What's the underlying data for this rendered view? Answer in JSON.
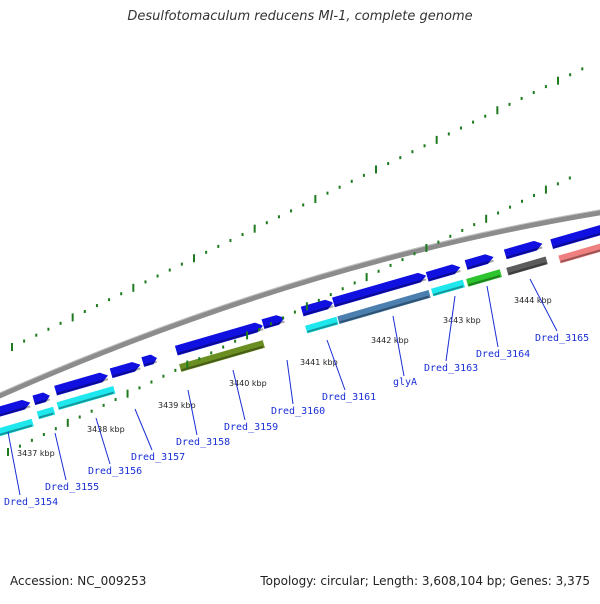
{
  "title": "Desulfotomaculum reducens MI-1, complete genome",
  "footer": {
    "accession": "Accession: NC_009253",
    "summary": "Topology: circular; Length: 3,608,104 bp; Genes: 3,375"
  },
  "colors": {
    "forward_gene": "#1010e0",
    "cds_cyan": "#1ee8ee",
    "cds_olive": "#6b8e23",
    "cds_steelblue": "#4a7fb0",
    "cds_green": "#2ec42e",
    "cds_grey": "#5c5c5c",
    "cds_pink": "#f08080",
    "backbone": "#8c8c8c",
    "tick": "#1e7a1e",
    "label": "#1a2fd6"
  },
  "tick_labels": [
    "3437 kbp",
    "3438 kbp",
    "3439 kbp",
    "3440 kbp",
    "3441 kbp",
    "3442 kbp",
    "3443 kbp",
    "3444 kbp"
  ],
  "gene_labels": [
    "Dred_3154",
    "Dred_3155",
    "Dred_3156",
    "Dred_3157",
    "Dred_3158",
    "Dred_3159",
    "Dred_3160",
    "Dred_3161",
    "glyA",
    "Dred_3163",
    "Dred_3164",
    "Dred_3165"
  ]
}
